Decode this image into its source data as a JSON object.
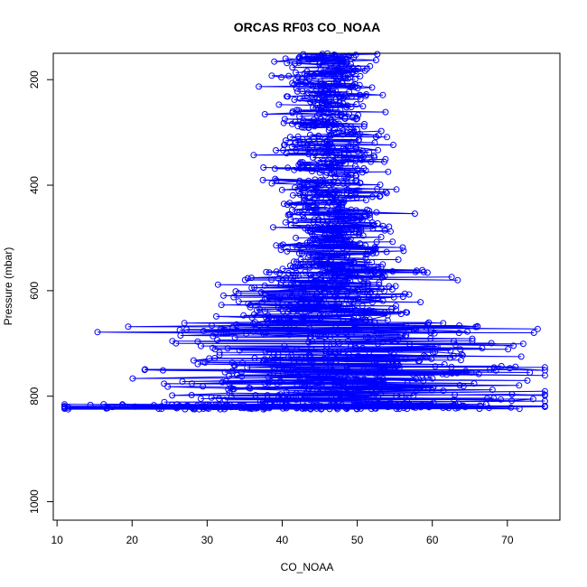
{
  "chart_data": {
    "type": "scatter",
    "title": "ORCAS RF03 CO_NOAA",
    "xlabel": "CO_NOAA",
    "ylabel": "Pressure (mbar)",
    "xlim": [
      9.5,
      77
    ],
    "ylim": [
      1035,
      150
    ],
    "y_reversed": true,
    "x_ticks": [
      10,
      20,
      30,
      40,
      50,
      60,
      70
    ],
    "y_ticks": [
      200,
      400,
      600,
      800,
      1000
    ],
    "series": [
      {
        "marker": "open-circle",
        "line": true,
        "color": "#0000ff",
        "clusters": [
          {
            "p_min": 150,
            "p_max": 300,
            "x_mean": 46,
            "x_sd": 3.2,
            "n": 260
          },
          {
            "p_min": 300,
            "p_max": 450,
            "x_mean": 46,
            "x_sd": 3.8,
            "n": 260
          },
          {
            "p_min": 450,
            "p_max": 560,
            "x_mean": 47,
            "x_sd": 4.0,
            "n": 220
          },
          {
            "p_min": 560,
            "p_max": 660,
            "x_mean": 46,
            "x_sd": 6.0,
            "n": 260
          },
          {
            "p_min": 660,
            "p_max": 740,
            "x_mean": 48,
            "x_sd": 12.0,
            "n": 200
          },
          {
            "p_min": 740,
            "p_max": 815,
            "x_mean": 50,
            "x_sd": 13.0,
            "n": 220
          },
          {
            "p_min": 815,
            "p_max": 825,
            "x_mean": 40,
            "x_sd": 15.0,
            "n": 200
          }
        ]
      }
    ]
  }
}
